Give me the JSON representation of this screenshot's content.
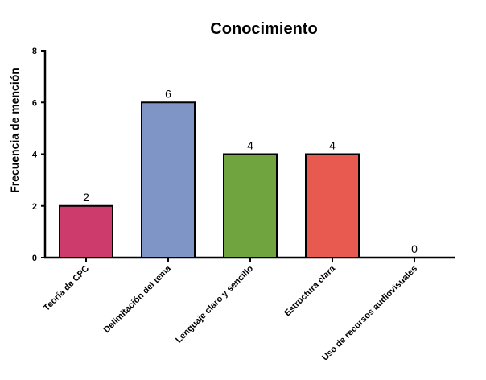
{
  "chart_data": {
    "type": "bar",
    "title": "Conocimiento",
    "xlabel": "",
    "ylabel": "Frecuencia de mención",
    "ylim": [
      0,
      8
    ],
    "yticks": [
      0,
      2,
      4,
      6,
      8
    ],
    "grid": false,
    "categories": [
      "Teoría de CPC",
      "Delimitación del tema",
      "Lenguaje claro y sencillo",
      "Estructura clara",
      "Uso de recursos audiovisuales"
    ],
    "values": [
      2,
      6,
      4,
      4,
      0
    ],
    "data_labels": [
      "2",
      "6",
      "4",
      "4",
      "0"
    ],
    "colors": [
      "#cc3b6b",
      "#7f95c6",
      "#70a43f",
      "#e85a4f",
      "#cccccc"
    ]
  }
}
